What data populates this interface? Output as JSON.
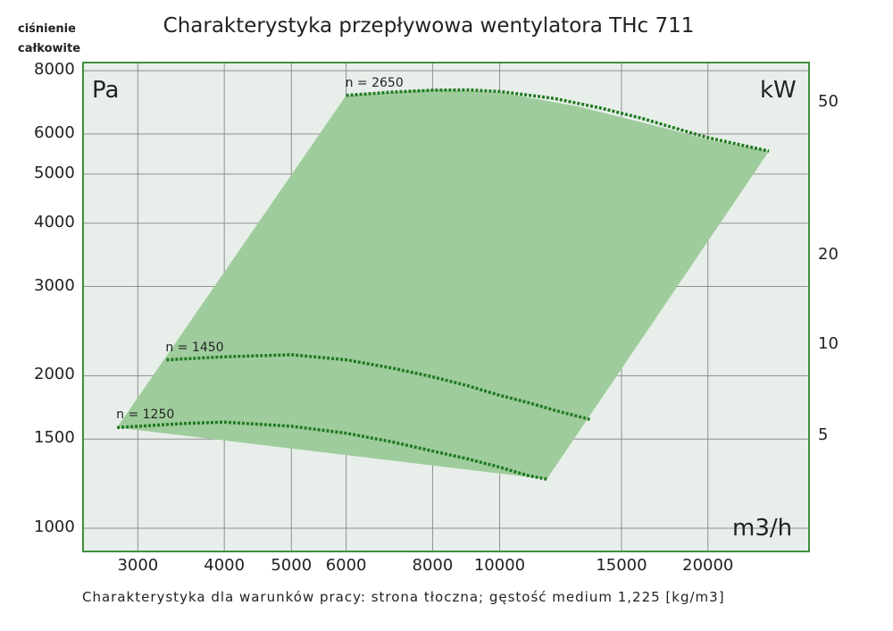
{
  "title": "Charakterystyka przepływowa wentylatora THc 711",
  "ylabel_line1": "ciśnienie",
  "ylabel_line2": "całkowite",
  "footer": "Charakterystyka dla warunków pracy: strona tłoczna; gęstość medium 1,225 [kg/m3]",
  "colors": {
    "plot_bg": "#e8efea",
    "grid": "#8f8f8f",
    "frame": "#3f8f3f",
    "region": "#9fcc9c",
    "curve": "#1f7a1f"
  },
  "chart_data": {
    "type": "area",
    "x_scale": "log",
    "y_scale": "log",
    "xlim": [
      2500,
      28000
    ],
    "ylim": [
      900,
      8300
    ],
    "x_unit": "m3/h",
    "y_unit": "Pa",
    "y2_unit": "kW",
    "x_ticks": [
      3000,
      4000,
      5000,
      6000,
      8000,
      10000,
      15000,
      20000
    ],
    "x_tick_labels": [
      "3000",
      "4000",
      "5000",
      "6000",
      "8000",
      "10000",
      "15000",
      "20000"
    ],
    "y_ticks": [
      1000,
      1500,
      2000,
      3000,
      4000,
      5000,
      6000,
      8000
    ],
    "y_tick_labels": [
      "1000",
      "1500",
      "2000",
      "3000",
      "4000",
      "5000",
      "6000",
      "8000"
    ],
    "y2_ticks": [
      {
        "label": "50",
        "at_pressure": 6900
      },
      {
        "label": "20",
        "at_pressure": 3450
      },
      {
        "label": "10",
        "at_pressure": 2300
      },
      {
        "label": "5",
        "at_pressure": 1520
      }
    ],
    "grid": true,
    "region": [
      [
        2800,
        1580
      ],
      [
        6000,
        7150
      ],
      [
        8000,
        7350
      ],
      [
        10000,
        7250
      ],
      [
        13000,
        6800
      ],
      [
        17000,
        6200
      ],
      [
        20000,
        5850
      ],
      [
        24500,
        5550
      ],
      [
        11700,
        1250
      ]
    ],
    "series": [
      {
        "name": "n = 2650",
        "x": [
          6000,
          7000,
          8000,
          9000,
          10000,
          12000,
          14000,
          16000,
          18000,
          20000,
          24500
        ],
        "y": [
          7150,
          7260,
          7320,
          7330,
          7280,
          7050,
          6750,
          6450,
          6150,
          5900,
          5550
        ]
      },
      {
        "name": "n = 1450",
        "x": [
          3300,
          4000,
          5000,
          6000,
          7000,
          8000,
          9000,
          10000,
          11000,
          12000,
          13500
        ],
        "y": [
          2150,
          2180,
          2200,
          2150,
          2070,
          1990,
          1910,
          1830,
          1770,
          1710,
          1640
        ]
      },
      {
        "name": "n = 1250",
        "x": [
          2800,
          3500,
          4000,
          5000,
          6000,
          7000,
          8000,
          9000,
          10000,
          11000,
          11700
        ],
        "y": [
          1580,
          1610,
          1620,
          1590,
          1540,
          1480,
          1420,
          1370,
          1320,
          1270,
          1250
        ]
      }
    ]
  }
}
